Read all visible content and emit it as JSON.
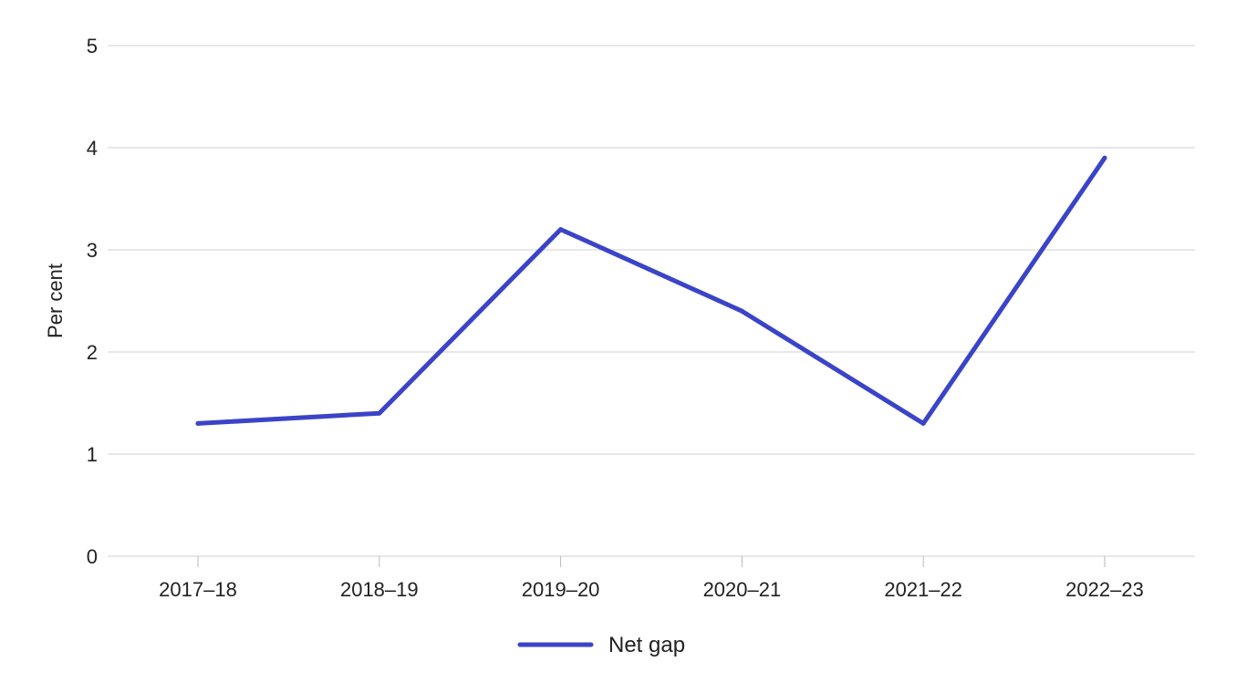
{
  "chart_data": {
    "type": "line",
    "categories": [
      "2017–18",
      "2018–19",
      "2019–20",
      "2020–21",
      "2021–22",
      "2022–23"
    ],
    "series": [
      {
        "name": "Net gap",
        "values": [
          1.3,
          1.4,
          3.2,
          2.4,
          1.3,
          3.9
        ],
        "color": "#3a44c8"
      }
    ],
    "title": "",
    "xlabel": "",
    "ylabel": "Per cent",
    "ylim": [
      0,
      5
    ],
    "yticks": [
      "0",
      "1",
      "2",
      "3",
      "4",
      "5"
    ],
    "grid": "horizontal",
    "legend_position": "bottom-center"
  }
}
